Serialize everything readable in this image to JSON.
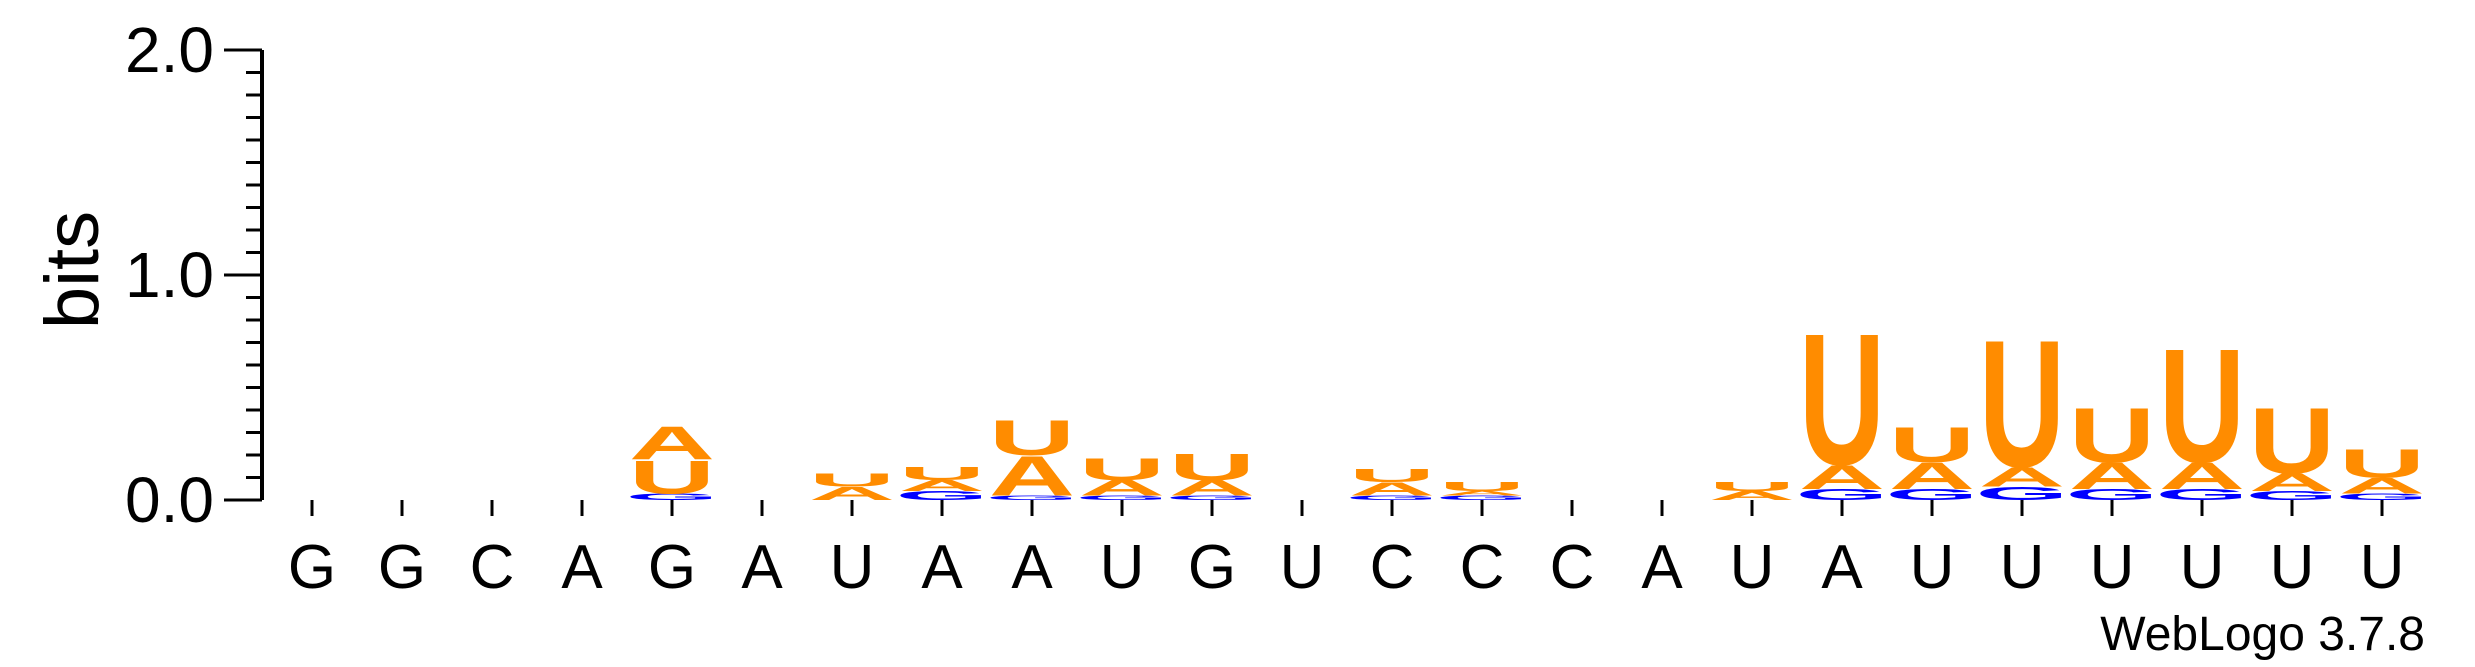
{
  "chart_data": {
    "type": "sequence-logo",
    "ylabel": "bits",
    "ylim": [
      0,
      2.0
    ],
    "yticks": [
      "0.0",
      "1.0",
      "2.0"
    ],
    "x": [
      "G",
      "G",
      "C",
      "A",
      "G",
      "A",
      "U",
      "A",
      "A",
      "U",
      "G",
      "U",
      "C",
      "C",
      "C",
      "A",
      "U",
      "A",
      "U",
      "U",
      "U",
      "U",
      "U",
      "U"
    ],
    "credit": "WebLogo 3.7.8",
    "colors": {
      "A": "#ff8c00",
      "U": "#ff8c00",
      "G": "#0000ff",
      "C": "#0000ff"
    },
    "positions": [
      [],
      [],
      [],
      [],
      [
        {
          "l": "G",
          "h": 0.03
        },
        {
          "l": "U",
          "h": 0.15
        },
        {
          "l": "A",
          "h": 0.15
        }
      ],
      [],
      [
        {
          "l": "A",
          "h": 0.06
        },
        {
          "l": "U",
          "h": 0.06
        }
      ],
      [
        {
          "l": "G",
          "h": 0.04
        },
        {
          "l": "A",
          "h": 0.05
        },
        {
          "l": "U",
          "h": 0.06
        }
      ],
      [
        {
          "l": "G",
          "h": 0.02
        },
        {
          "l": "A",
          "h": 0.18
        },
        {
          "l": "U",
          "h": 0.16
        }
      ],
      [
        {
          "l": "G",
          "h": 0.02
        },
        {
          "l": "A",
          "h": 0.07
        },
        {
          "l": "U",
          "h": 0.1
        }
      ],
      [
        {
          "l": "G",
          "h": 0.02
        },
        {
          "l": "A",
          "h": 0.07
        },
        {
          "l": "U",
          "h": 0.12
        }
      ],
      [],
      [
        {
          "l": "G",
          "h": 0.02
        },
        {
          "l": "A",
          "h": 0.06
        },
        {
          "l": "U",
          "h": 0.06
        }
      ],
      [
        {
          "l": "G",
          "h": 0.02
        },
        {
          "l": "A",
          "h": 0.02
        },
        {
          "l": "U",
          "h": 0.04
        }
      ],
      [],
      [],
      [
        {
          "l": "A",
          "h": 0.04
        },
        {
          "l": "U",
          "h": 0.04
        }
      ],
      [
        {
          "l": "G",
          "h": 0.05
        },
        {
          "l": "A",
          "h": 0.11
        },
        {
          "l": "U",
          "h": 0.6
        }
      ],
      [
        {
          "l": "G",
          "h": 0.05
        },
        {
          "l": "A",
          "h": 0.12
        },
        {
          "l": "U",
          "h": 0.16
        }
      ],
      [
        {
          "l": "G",
          "h": 0.06
        },
        {
          "l": "A",
          "h": 0.09
        },
        {
          "l": "U",
          "h": 0.58
        }
      ],
      [
        {
          "l": "G",
          "h": 0.05
        },
        {
          "l": "A",
          "h": 0.12
        },
        {
          "l": "U",
          "h": 0.25
        }
      ],
      [
        {
          "l": "G",
          "h": 0.05
        },
        {
          "l": "A",
          "h": 0.12
        },
        {
          "l": "U",
          "h": 0.52
        }
      ],
      [
        {
          "l": "G",
          "h": 0.04
        },
        {
          "l": "A",
          "h": 0.08
        },
        {
          "l": "U",
          "h": 0.3
        }
      ],
      [
        {
          "l": "G",
          "h": 0.03
        },
        {
          "l": "A",
          "h": 0.07
        },
        {
          "l": "U",
          "h": 0.13
        }
      ]
    ]
  }
}
